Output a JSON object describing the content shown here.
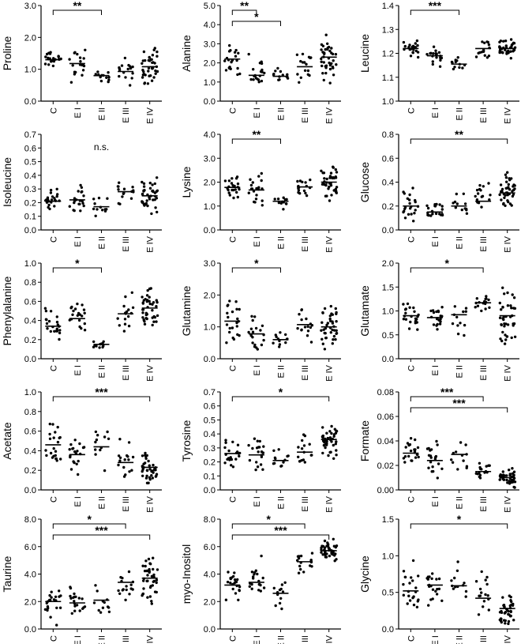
{
  "categories": [
    "C",
    "E I",
    "E II",
    "E III",
    "E IV"
  ],
  "chart_data": [
    {
      "type": "scatter",
      "ylabel": "Proline",
      "yticks": [
        "0.0",
        "1.0",
        "2.0",
        "3.0"
      ],
      "ylim": [
        0,
        3
      ],
      "means": [
        1.3,
        1.18,
        0.8,
        0.93,
        1.08
      ],
      "spread": [
        0.28,
        0.48,
        0.28,
        0.4,
        0.55
      ],
      "n": [
        22,
        20,
        12,
        16,
        40
      ],
      "sig": [
        {
          "a": 0,
          "b": 2,
          "label": "**"
        }
      ]
    },
    {
      "type": "scatter",
      "ylabel": "Alanine",
      "yticks": [
        "0.0",
        "1.0",
        "2.0",
        "3.0",
        "4.0",
        "5.0"
      ],
      "ylim": [
        0,
        5
      ],
      "means": [
        2.2,
        1.35,
        1.3,
        1.8,
        2.3
      ],
      "spread": [
        0.75,
        0.75,
        0.4,
        0.7,
        0.95
      ],
      "n": [
        22,
        20,
        12,
        16,
        40
      ],
      "sig": [
        {
          "a": 0,
          "b": 1,
          "label": "**"
        },
        {
          "a": 0,
          "b": 2,
          "label": "*"
        }
      ]
    },
    {
      "type": "scatter",
      "ylabel": "Leucine",
      "yticks": [
        "1.0",
        "1.1",
        "1.2",
        "1.3",
        "1.4"
      ],
      "ylim": [
        1,
        1.4
      ],
      "means": [
        1.22,
        1.19,
        1.155,
        1.22,
        1.22
      ],
      "spread": [
        0.03,
        0.04,
        0.02,
        0.04,
        0.03
      ],
      "n": [
        22,
        20,
        12,
        16,
        40
      ],
      "sig": [
        {
          "a": 0,
          "b": 2,
          "label": "***"
        }
      ]
    },
    {
      "type": "scatter",
      "ylabel": "Isoleucine",
      "yticks": [
        "0.0",
        "0.1",
        "0.2",
        "0.3",
        "0.4",
        "0.5",
        "0.6",
        "0.7"
      ],
      "ylim": [
        0,
        0.7
      ],
      "means": [
        0.21,
        0.22,
        0.17,
        0.28,
        0.25
      ],
      "spread": [
        0.09,
        0.1,
        0.08,
        0.08,
        0.12
      ],
      "n": [
        22,
        20,
        12,
        16,
        40
      ],
      "sig": [],
      "note": "n.s."
    },
    {
      "type": "scatter",
      "ylabel": "Lysine",
      "yticks": [
        "0.0",
        "1.0",
        "2.0",
        "3.0",
        "4.0"
      ],
      "ylim": [
        0,
        4
      ],
      "means": [
        1.78,
        1.67,
        1.2,
        1.8,
        2.0
      ],
      "spread": [
        0.45,
        0.65,
        0.3,
        0.45,
        0.6
      ],
      "n": [
        22,
        20,
        12,
        16,
        40
      ],
      "sig": [
        {
          "a": 0,
          "b": 2,
          "label": "**"
        }
      ]
    },
    {
      "type": "scatter",
      "ylabel": "Glucose",
      "yticks": [
        "0.0",
        "0.2",
        "0.4",
        "0.6",
        "0.8"
      ],
      "ylim": [
        0,
        0.8
      ],
      "means": [
        0.2,
        0.15,
        0.2,
        0.24,
        0.31
      ],
      "spread": [
        0.13,
        0.08,
        0.12,
        0.13,
        0.14
      ],
      "n": [
        22,
        20,
        12,
        16,
        40
      ],
      "sig": [
        {
          "a": 0,
          "b": 4,
          "label": "**"
        }
      ]
    },
    {
      "type": "scatter",
      "ylabel": "Phenylalanine",
      "yticks": [
        "0.0",
        "0.2",
        "0.4",
        "0.6",
        "0.8",
        "1.0"
      ],
      "ylim": [
        0,
        1
      ],
      "means": [
        0.34,
        0.42,
        0.15,
        0.47,
        0.53
      ],
      "spread": [
        0.14,
        0.18,
        0.04,
        0.2,
        0.2
      ],
      "n": [
        22,
        20,
        12,
        16,
        40
      ],
      "sig": [
        {
          "a": 0,
          "b": 2,
          "label": "*"
        }
      ]
    },
    {
      "type": "scatter",
      "ylabel": "Glutamine",
      "yticks": [
        "0.0",
        "1.0",
        "2.0",
        "3.0"
      ],
      "ylim": [
        0,
        3
      ],
      "means": [
        1.18,
        0.78,
        0.6,
        1.07,
        1.0
      ],
      "spread": [
        0.65,
        0.5,
        0.3,
        0.55,
        0.6
      ],
      "n": [
        22,
        20,
        12,
        16,
        40
      ],
      "sig": [
        {
          "a": 0,
          "b": 2,
          "label": "*"
        }
      ]
    },
    {
      "type": "scatter",
      "ylabel": "Glutamate",
      "yticks": [
        "0.0",
        "0.5",
        "1.0",
        "1.5",
        "2.0"
      ],
      "ylim": [
        0,
        2
      ],
      "means": [
        0.9,
        0.86,
        0.92,
        1.17,
        0.9
      ],
      "spread": [
        0.3,
        0.25,
        0.45,
        0.18,
        0.45
      ],
      "n": [
        22,
        20,
        12,
        16,
        40
      ],
      "sig": [
        {
          "a": 0,
          "b": 3,
          "label": "*"
        }
      ]
    },
    {
      "type": "scatter",
      "ylabel": "Acetate",
      "yticks": [
        "0.0",
        "0.2",
        "0.4",
        "0.6",
        "0.8",
        "1.0"
      ],
      "ylim": [
        0,
        1
      ],
      "means": [
        0.46,
        0.36,
        0.44,
        0.28,
        0.23
      ],
      "spread": [
        0.2,
        0.2,
        0.22,
        0.18,
        0.15
      ],
      "n": [
        22,
        20,
        12,
        16,
        40
      ],
      "sig": [
        {
          "a": 0,
          "b": 4,
          "label": "***"
        }
      ]
    },
    {
      "type": "scatter",
      "ylabel": "Tyrosine",
      "yticks": [
        "0.0",
        "0.1",
        "0.2",
        "0.3",
        "0.4",
        "0.5",
        "0.6",
        "0.7"
      ],
      "ylim": [
        0,
        0.7
      ],
      "means": [
        0.26,
        0.25,
        0.21,
        0.27,
        0.36
      ],
      "spread": [
        0.12,
        0.14,
        0.1,
        0.13,
        0.12
      ],
      "n": [
        22,
        20,
        12,
        16,
        40
      ],
      "sig": [
        {
          "a": 0,
          "b": 4,
          "label": "*"
        }
      ]
    },
    {
      "type": "scatter",
      "ylabel": "Formate",
      "yticks": [
        "0.00",
        "0.02",
        "0.04",
        "0.06",
        "0.08"
      ],
      "ylim": [
        0,
        0.08
      ],
      "means": [
        0.03,
        0.024,
        0.029,
        0.015,
        0.01
      ],
      "spread": [
        0.012,
        0.015,
        0.015,
        0.008,
        0.006
      ],
      "n": [
        22,
        20,
        12,
        16,
        40
      ],
      "sig": [
        {
          "a": 0,
          "b": 3,
          "label": "***"
        },
        {
          "a": 0,
          "b": 4,
          "label": "***"
        }
      ]
    },
    {
      "type": "scatter",
      "ylabel": "Taurine",
      "yticks": [
        "0.0",
        "2.0",
        "4.0",
        "6.0",
        "8.0"
      ],
      "ylim": [
        0,
        8
      ],
      "means": [
        2.0,
        1.9,
        2.1,
        3.4,
        3.7
      ],
      "spread": [
        1.2,
        1.1,
        1.3,
        1.2,
        1.5
      ],
      "n": [
        22,
        20,
        12,
        16,
        40
      ],
      "sig": [
        {
          "a": 0,
          "b": 3,
          "label": "*"
        },
        {
          "a": 0,
          "b": 4,
          "label": "***"
        }
      ]
    },
    {
      "type": "scatter",
      "ylabel": "myo-Inositol",
      "yticks": [
        "0.0",
        "2.0",
        "4.0",
        "6.0",
        "8.0"
      ],
      "ylim": [
        0,
        8
      ],
      "means": [
        3.2,
        3.4,
        2.6,
        4.9,
        5.7
      ],
      "spread": [
        0.9,
        1.3,
        0.9,
        0.7,
        0.7
      ],
      "n": [
        22,
        20,
        12,
        16,
        40
      ],
      "sig": [
        {
          "a": 0,
          "b": 3,
          "label": "*"
        },
        {
          "a": 0,
          "b": 4,
          "label": "***"
        }
      ]
    },
    {
      "type": "scatter",
      "ylabel": "Glycine",
      "yticks": [
        "0.0",
        "0.5",
        "1.0",
        "1.5"
      ],
      "ylim": [
        0,
        1.5
      ],
      "means": [
        0.52,
        0.6,
        0.59,
        0.42,
        0.28
      ],
      "spread": [
        0.38,
        0.3,
        0.28,
        0.3,
        0.2
      ],
      "n": [
        22,
        20,
        12,
        16,
        40
      ],
      "sig": [
        {
          "a": 0,
          "b": 4,
          "label": "*"
        }
      ]
    }
  ]
}
